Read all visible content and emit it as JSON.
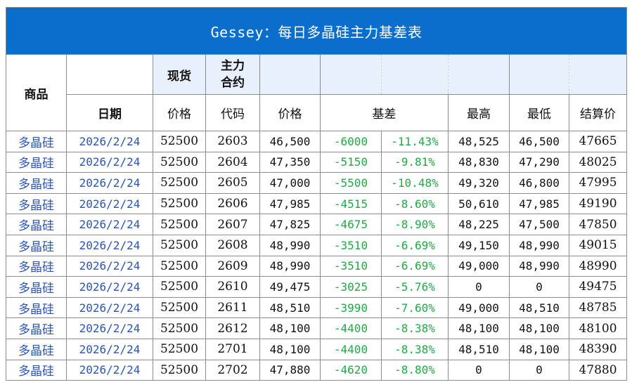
{
  "title": "Gessey：每日多晶硅主力基差表",
  "header": {
    "product": "商品",
    "spot": "现货",
    "main_contract": "主力合约",
    "date": "日期",
    "spot_price": "价格",
    "code": "代码",
    "price": "价格",
    "basis": "基差",
    "high": "最高",
    "low": "最低",
    "settle": "结算价"
  },
  "rows": [
    {
      "product": "多晶硅",
      "date": "2026/2/24",
      "spot": "52500",
      "code": "2603",
      "price": "46,500",
      "basis": "-6000",
      "basis_pct": "-11.43%",
      "high": "48,525",
      "low": "46,500",
      "settle": "47665"
    },
    {
      "product": "多晶硅",
      "date": "2026/2/24",
      "spot": "52500",
      "code": "2604",
      "price": "47,350",
      "basis": "-5150",
      "basis_pct": "-9.81%",
      "high": "48,830",
      "low": "47,290",
      "settle": "48025"
    },
    {
      "product": "多晶硅",
      "date": "2026/2/24",
      "spot": "52500",
      "code": "2605",
      "price": "47,000",
      "basis": "-5500",
      "basis_pct": "-10.48%",
      "high": "49,320",
      "low": "46,800",
      "settle": "47995"
    },
    {
      "product": "多晶硅",
      "date": "2026/2/24",
      "spot": "52500",
      "code": "2606",
      "price": "47,985",
      "basis": "-4515",
      "basis_pct": "-8.60%",
      "high": "50,610",
      "low": "47,985",
      "settle": "49190"
    },
    {
      "product": "多晶硅",
      "date": "2026/2/24",
      "spot": "52500",
      "code": "2607",
      "price": "47,825",
      "basis": "-4675",
      "basis_pct": "-8.90%",
      "high": "48,225",
      "low": "47,500",
      "settle": "47850"
    },
    {
      "product": "多晶硅",
      "date": "2026/2/24",
      "spot": "52500",
      "code": "2608",
      "price": "48,990",
      "basis": "-3510",
      "basis_pct": "-6.69%",
      "high": "49,150",
      "low": "48,990",
      "settle": "49015"
    },
    {
      "product": "多晶硅",
      "date": "2026/2/24",
      "spot": "52500",
      "code": "2609",
      "price": "48,990",
      "basis": "-3510",
      "basis_pct": "-6.69%",
      "high": "49,000",
      "low": "48,990",
      "settle": "48990"
    },
    {
      "product": "多晶硅",
      "date": "2026/2/24",
      "spot": "52500",
      "code": "2610",
      "price": "49,475",
      "basis": "-3025",
      "basis_pct": "-5.76%",
      "high": "0",
      "low": "0",
      "settle": "49475"
    },
    {
      "product": "多晶硅",
      "date": "2026/2/24",
      "spot": "52500",
      "code": "2611",
      "price": "48,510",
      "basis": "-3990",
      "basis_pct": "-7.60%",
      "high": "49,000",
      "low": "48,510",
      "settle": "48785"
    },
    {
      "product": "多晶硅",
      "date": "2026/2/24",
      "spot": "52500",
      "code": "2612",
      "price": "48,100",
      "basis": "-4400",
      "basis_pct": "-8.38%",
      "high": "48,100",
      "low": "48,100",
      "settle": "48100"
    },
    {
      "product": "多晶硅",
      "date": "2026/2/24",
      "spot": "52500",
      "code": "2701",
      "price": "48,100",
      "basis": "-4400",
      "basis_pct": "-8.38%",
      "high": "48,510",
      "low": "48,100",
      "settle": "48390"
    },
    {
      "product": "多晶硅",
      "date": "2026/2/24",
      "spot": "52500",
      "code": "2702",
      "price": "47,880",
      "basis": "-4620",
      "basis_pct": "-8.80%",
      "high": "0",
      "low": "0",
      "settle": "47880"
    }
  ],
  "colors": {
    "title_bg": "#0a6fcc",
    "header_tint": "#e8f1fb",
    "negative": "#22a845",
    "product_text": "#2a55b8"
  }
}
